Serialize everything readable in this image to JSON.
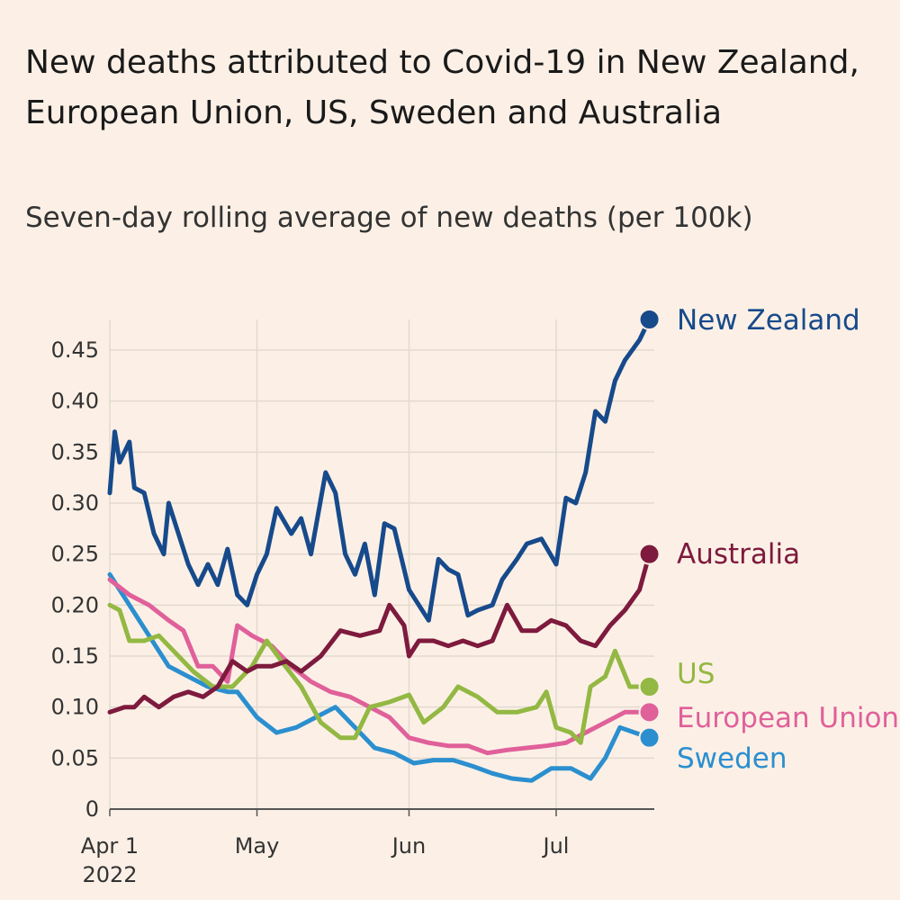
{
  "title": "New deaths attributed to Covid-19 in New Zealand, European Union, US, Sweden and Australia",
  "subtitle": "Seven-day rolling average of new deaths (per 100k)",
  "chart_data": {
    "type": "line",
    "title": "New deaths attributed to Covid-19 in New Zealand, European Union, US, Sweden and Australia",
    "subtitle": "Seven-day rolling average of new deaths (per 100k)",
    "ylim": [
      0,
      0.48
    ],
    "y_ticks": [
      "0",
      "0.05",
      "0.10",
      "0.15",
      "0.20",
      "0.25",
      "0.30",
      "0.35",
      "0.40",
      "0.45"
    ],
    "y_tick_values": [
      0,
      0.05,
      0.1,
      0.15,
      0.2,
      0.25,
      0.3,
      0.35,
      0.4,
      0.45
    ],
    "x_domain": [
      "2022-04-01",
      "2022-07-21"
    ],
    "x_ticks": [
      {
        "date": "2022-04-01",
        "label": "Apr 1",
        "sublabel": "2022"
      },
      {
        "date": "2022-05-01",
        "label": "May",
        "sublabel": ""
      },
      {
        "date": "2022-06-01",
        "label": "Jun",
        "sublabel": ""
      },
      {
        "date": "2022-07-01",
        "label": "Jul",
        "sublabel": ""
      }
    ],
    "grid": true,
    "series": [
      {
        "name": "Sweden",
        "color": "#2b8fcf",
        "points": [
          [
            "2022-04-01",
            0.23
          ],
          [
            "2022-04-05",
            0.2
          ],
          [
            "2022-04-09",
            0.17
          ],
          [
            "2022-04-13",
            0.14
          ],
          [
            "2022-04-17",
            0.13
          ],
          [
            "2022-04-21",
            0.12
          ],
          [
            "2022-04-25",
            0.115
          ],
          [
            "2022-04-27",
            0.115
          ],
          [
            "2022-05-01",
            0.09
          ],
          [
            "2022-05-05",
            0.075
          ],
          [
            "2022-05-09",
            0.08
          ],
          [
            "2022-05-13",
            0.09
          ],
          [
            "2022-05-17",
            0.1
          ],
          [
            "2022-05-21",
            0.08
          ],
          [
            "2022-05-25",
            0.06
          ],
          [
            "2022-05-29",
            0.055
          ],
          [
            "2022-06-02",
            0.045
          ],
          [
            "2022-06-06",
            0.048
          ],
          [
            "2022-06-10",
            0.048
          ],
          [
            "2022-06-14",
            0.042
          ],
          [
            "2022-06-18",
            0.035
          ],
          [
            "2022-06-22",
            0.03
          ],
          [
            "2022-06-26",
            0.028
          ],
          [
            "2022-06-30",
            0.04
          ],
          [
            "2022-07-04",
            0.04
          ],
          [
            "2022-07-08",
            0.03
          ],
          [
            "2022-07-11",
            0.05
          ],
          [
            "2022-07-14",
            0.08
          ],
          [
            "2022-07-17",
            0.075
          ],
          [
            "2022-07-20",
            0.07
          ]
        ]
      },
      {
        "name": "European Union",
        "color": "#e0609a",
        "points": [
          [
            "2022-04-01",
            0.225
          ],
          [
            "2022-04-05",
            0.21
          ],
          [
            "2022-04-09",
            0.2
          ],
          [
            "2022-04-13",
            0.185
          ],
          [
            "2022-04-16",
            0.175
          ],
          [
            "2022-04-19",
            0.14
          ],
          [
            "2022-04-22",
            0.14
          ],
          [
            "2022-04-25",
            0.125
          ],
          [
            "2022-04-27",
            0.18
          ],
          [
            "2022-04-30",
            0.17
          ],
          [
            "2022-05-04",
            0.16
          ],
          [
            "2022-05-08",
            0.14
          ],
          [
            "2022-05-12",
            0.125
          ],
          [
            "2022-05-16",
            0.115
          ],
          [
            "2022-05-20",
            0.11
          ],
          [
            "2022-05-24",
            0.1
          ],
          [
            "2022-05-28",
            0.09
          ],
          [
            "2022-06-01",
            0.07
          ],
          [
            "2022-06-05",
            0.065
          ],
          [
            "2022-06-09",
            0.062
          ],
          [
            "2022-06-13",
            0.062
          ],
          [
            "2022-06-17",
            0.055
          ],
          [
            "2022-06-21",
            0.058
          ],
          [
            "2022-06-25",
            0.06
          ],
          [
            "2022-06-29",
            0.062
          ],
          [
            "2022-07-03",
            0.065
          ],
          [
            "2022-07-07",
            0.075
          ],
          [
            "2022-07-11",
            0.085
          ],
          [
            "2022-07-15",
            0.095
          ],
          [
            "2022-07-20",
            0.095
          ]
        ]
      },
      {
        "name": "US",
        "color": "#93b843",
        "points": [
          [
            "2022-04-01",
            0.2
          ],
          [
            "2022-04-03",
            0.195
          ],
          [
            "2022-04-05",
            0.165
          ],
          [
            "2022-04-08",
            0.165
          ],
          [
            "2022-04-11",
            0.17
          ],
          [
            "2022-04-14",
            0.155
          ],
          [
            "2022-04-18",
            0.135
          ],
          [
            "2022-04-22",
            0.12
          ],
          [
            "2022-04-26",
            0.12
          ],
          [
            "2022-04-30",
            0.14
          ],
          [
            "2022-05-03",
            0.165
          ],
          [
            "2022-05-06",
            0.145
          ],
          [
            "2022-05-10",
            0.12
          ],
          [
            "2022-05-14",
            0.085
          ],
          [
            "2022-05-18",
            0.07
          ],
          [
            "2022-05-21",
            0.07
          ],
          [
            "2022-05-24",
            0.1
          ],
          [
            "2022-05-28",
            0.105
          ],
          [
            "2022-06-01",
            0.112
          ],
          [
            "2022-06-04",
            0.085
          ],
          [
            "2022-06-08",
            0.1
          ],
          [
            "2022-06-11",
            0.12
          ],
          [
            "2022-06-15",
            0.11
          ],
          [
            "2022-06-19",
            0.095
          ],
          [
            "2022-06-23",
            0.095
          ],
          [
            "2022-06-27",
            0.1
          ],
          [
            "2022-06-29",
            0.115
          ],
          [
            "2022-07-01",
            0.08
          ],
          [
            "2022-07-04",
            0.075
          ],
          [
            "2022-07-06",
            0.065
          ],
          [
            "2022-07-08",
            0.12
          ],
          [
            "2022-07-11",
            0.13
          ],
          [
            "2022-07-13",
            0.155
          ],
          [
            "2022-07-16",
            0.12
          ],
          [
            "2022-07-20",
            0.12
          ]
        ]
      },
      {
        "name": "Australia",
        "color": "#7d1a3d",
        "points": [
          [
            "2022-04-01",
            0.095
          ],
          [
            "2022-04-04",
            0.1
          ],
          [
            "2022-04-06",
            0.1
          ],
          [
            "2022-04-08",
            0.11
          ],
          [
            "2022-04-11",
            0.1
          ],
          [
            "2022-04-14",
            0.11
          ],
          [
            "2022-04-17",
            0.115
          ],
          [
            "2022-04-20",
            0.11
          ],
          [
            "2022-04-23",
            0.12
          ],
          [
            "2022-04-26",
            0.145
          ],
          [
            "2022-04-29",
            0.135
          ],
          [
            "2022-05-01",
            0.14
          ],
          [
            "2022-05-04",
            0.14
          ],
          [
            "2022-05-07",
            0.145
          ],
          [
            "2022-05-10",
            0.135
          ],
          [
            "2022-05-14",
            0.15
          ],
          [
            "2022-05-18",
            0.175
          ],
          [
            "2022-05-22",
            0.17
          ],
          [
            "2022-05-26",
            0.175
          ],
          [
            "2022-05-28",
            0.2
          ],
          [
            "2022-05-31",
            0.18
          ],
          [
            "2022-06-01",
            0.15
          ],
          [
            "2022-06-03",
            0.165
          ],
          [
            "2022-06-06",
            0.165
          ],
          [
            "2022-06-09",
            0.16
          ],
          [
            "2022-06-12",
            0.165
          ],
          [
            "2022-06-15",
            0.16
          ],
          [
            "2022-06-18",
            0.165
          ],
          [
            "2022-06-21",
            0.2
          ],
          [
            "2022-06-24",
            0.175
          ],
          [
            "2022-06-27",
            0.175
          ],
          [
            "2022-06-30",
            0.185
          ],
          [
            "2022-07-03",
            0.18
          ],
          [
            "2022-07-06",
            0.165
          ],
          [
            "2022-07-09",
            0.16
          ],
          [
            "2022-07-12",
            0.18
          ],
          [
            "2022-07-15",
            0.195
          ],
          [
            "2022-07-18",
            0.215
          ],
          [
            "2022-07-20",
            0.25
          ]
        ]
      },
      {
        "name": "New Zealand",
        "color": "#174a8b",
        "points": [
          [
            "2022-04-01",
            0.31
          ],
          [
            "2022-04-02",
            0.37
          ],
          [
            "2022-04-03",
            0.34
          ],
          [
            "2022-04-05",
            0.36
          ],
          [
            "2022-04-06",
            0.315
          ],
          [
            "2022-04-08",
            0.31
          ],
          [
            "2022-04-10",
            0.27
          ],
          [
            "2022-04-12",
            0.25
          ],
          [
            "2022-04-13",
            0.3
          ],
          [
            "2022-04-15",
            0.27
          ],
          [
            "2022-04-17",
            0.24
          ],
          [
            "2022-04-19",
            0.22
          ],
          [
            "2022-04-21",
            0.24
          ],
          [
            "2022-04-23",
            0.22
          ],
          [
            "2022-04-25",
            0.255
          ],
          [
            "2022-04-27",
            0.21
          ],
          [
            "2022-04-29",
            0.2
          ],
          [
            "2022-05-01",
            0.23
          ],
          [
            "2022-05-03",
            0.25
          ],
          [
            "2022-05-05",
            0.295
          ],
          [
            "2022-05-08",
            0.27
          ],
          [
            "2022-05-10",
            0.285
          ],
          [
            "2022-05-12",
            0.25
          ],
          [
            "2022-05-15",
            0.33
          ],
          [
            "2022-05-17",
            0.31
          ],
          [
            "2022-05-19",
            0.25
          ],
          [
            "2022-05-21",
            0.23
          ],
          [
            "2022-05-23",
            0.26
          ],
          [
            "2022-05-25",
            0.21
          ],
          [
            "2022-05-27",
            0.28
          ],
          [
            "2022-05-29",
            0.275
          ],
          [
            "2022-06-01",
            0.215
          ],
          [
            "2022-06-03",
            0.2
          ],
          [
            "2022-06-05",
            0.185
          ],
          [
            "2022-06-07",
            0.245
          ],
          [
            "2022-06-09",
            0.235
          ],
          [
            "2022-06-11",
            0.23
          ],
          [
            "2022-06-13",
            0.19
          ],
          [
            "2022-06-15",
            0.195
          ],
          [
            "2022-06-18",
            0.2
          ],
          [
            "2022-06-20",
            0.225
          ],
          [
            "2022-06-23",
            0.245
          ],
          [
            "2022-06-25",
            0.26
          ],
          [
            "2022-06-28",
            0.265
          ],
          [
            "2022-07-01",
            0.24
          ],
          [
            "2022-07-03",
            0.305
          ],
          [
            "2022-07-05",
            0.3
          ],
          [
            "2022-07-07",
            0.33
          ],
          [
            "2022-07-09",
            0.39
          ],
          [
            "2022-07-11",
            0.38
          ],
          [
            "2022-07-13",
            0.42
          ],
          [
            "2022-07-15",
            0.44
          ],
          [
            "2022-07-18",
            0.46
          ],
          [
            "2022-07-20",
            0.48
          ]
        ]
      }
    ]
  }
}
